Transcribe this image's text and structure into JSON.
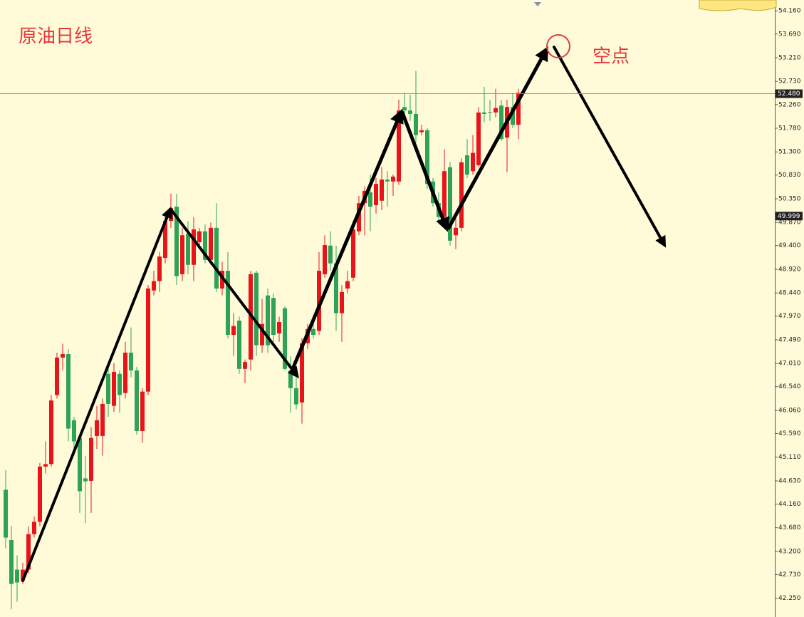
{
  "chart_data": {
    "type": "candlestick",
    "title": "原油日线",
    "annotations": [
      {
        "text": "空点"
      }
    ],
    "up_color": "#e8141a",
    "down_color": "#2ea356",
    "open": [
      44.45,
      43.43,
      42.83,
      42.61,
      42.83,
      43.55,
      43.8,
      44.92,
      44.97,
      46.37,
      47.13,
      47.2,
      45.86,
      45.5,
      44.68,
      44.63,
      45.54,
      45.54,
      46.8,
      46.15,
      46.8,
      46.41,
      47.23,
      46.87,
      45.64,
      46.44,
      48.49,
      48.68,
      49.15,
      49.9,
      50.19,
      48.82,
      49.64,
      49.01,
      49.47,
      49.69,
      49.11,
      49.76,
      48.53,
      48.89,
      47.59,
      47.88,
      46.9,
      47.09,
      48.85,
      47.38,
      48.39,
      48.34,
      47.62,
      48.13,
      46.87,
      46.51,
      46.22,
      47.42,
      47.71,
      47.67,
      48.82,
      49.4,
      49.04,
      48.03,
      48.53,
      48.75,
      49.69,
      50.26,
      50.48,
      50.22,
      50.31,
      50.74,
      50.7,
      50.7,
      52.21,
      52.14,
      52.07,
      51.7,
      51.74,
      50.7,
      50.26,
      49.98,
      50.99,
      49.61,
      49.76,
      51.23,
      50.91,
      51.03,
      52.1,
      52.11,
      52.1,
      52.24,
      51.59,
      52.21,
      51.85
    ],
    "high": [
      44.85,
      43.71,
      43.12,
      42.97,
      43.71,
      43.91,
      44.99,
      45.43,
      46.37,
      47.23,
      47.41,
      47.3,
      45.93,
      45.57,
      45.14,
      45.72,
      46.15,
      46.3,
      46.94,
      47.02,
      46.87,
      47.45,
      47.74,
      46.94,
      46.51,
      48.6,
      48.89,
      49.27,
      50.05,
      50.45,
      50.45,
      49.76,
      49.9,
      49.98,
      49.76,
      49.83,
      49.87,
      50.26,
      49.07,
      49.27,
      48.03,
      47.96,
      47.09,
      48.89,
      48.89,
      48.32,
      48.53,
      48.43,
      47.96,
      48.17,
      47.16,
      46.73,
      47.52,
      47.81,
      47.81,
      49.27,
      49.61,
      49.69,
      49.4,
      48.6,
      48.89,
      49.9,
      50.41,
      50.6,
      50.84,
      50.77,
      50.99,
      50.91,
      50.84,
      52.36,
      52.5,
      52.46,
      52.94,
      51.85,
      51.78,
      50.77,
      50.48,
      51.35,
      51.09,
      49.98,
      51.17,
      51.56,
      51.64,
      52.21,
      52.62,
      52.36,
      52.58,
      52.36,
      52.36,
      52.5,
      52.58
    ],
    "low": [
      43.26,
      42.03,
      42.18,
      42.54,
      42.76,
      43.48,
      43.71,
      44.78,
      44.92,
      46.3,
      46.87,
      45.43,
      45.14,
      43.98,
      43.77,
      43.98,
      45.28,
      45.14,
      45.93,
      46.03,
      46.01,
      46.3,
      46.73,
      45.57,
      45.4,
      46.37,
      48.39,
      48.46,
      49.04,
      49.76,
      48.6,
      48.68,
      48.82,
      48.68,
      49.33,
      49.04,
      49.01,
      48.46,
      48.39,
      47.52,
      47.16,
      46.8,
      46.61,
      46.87,
      47.16,
      47.23,
      47.23,
      47.45,
      47.45,
      46.87,
      46.01,
      46.08,
      45.79,
      47.3,
      47.52,
      47.59,
      48.75,
      48.89,
      47.67,
      47.45,
      48.43,
      48.68,
      49.61,
      49.61,
      49.69,
      50.05,
      50.12,
      50.19,
      50.41,
      50.63,
      51.93,
      51.93,
      51.49,
      51.64,
      50.55,
      50.19,
      49.9,
      49.79,
      49.4,
      49.33,
      49.69,
      50.77,
      50.84,
      50.99,
      51.9,
      51.93,
      52.0,
      51.52,
      50.89,
      51.78,
      51.56
    ],
    "close": [
      43.48,
      42.54,
      42.57,
      42.83,
      43.55,
      43.8,
      44.92,
      44.97,
      46.26,
      47.13,
      47.2,
      45.69,
      45.43,
      44.42,
      44.62,
      45.5,
      45.86,
      46.19,
      46.19,
      46.84,
      46.37,
      47.23,
      46.87,
      45.64,
      46.44,
      48.53,
      48.68,
      49.18,
      49.9,
      50.16,
      48.78,
      49.61,
      49.01,
      49.73,
      49.69,
      49.11,
      49.76,
      48.53,
      48.89,
      47.59,
      47.77,
      46.9,
      47.04,
      48.82,
      47.38,
      47.81,
      47.38,
      47.59,
      47.85,
      46.9,
      46.51,
      46.18,
      47.42,
      47.71,
      47.59,
      48.89,
      49.41,
      49.04,
      48.03,
      48.46,
      48.68,
      49.73,
      50.26,
      50.51,
      50.19,
      50.65,
      50.74,
      50.7,
      50.8,
      52.14,
      52.14,
      52.07,
      51.64,
      51.74,
      50.65,
      50.26,
      49.98,
      50.91,
      49.5,
      49.76,
      51.09,
      50.84,
      51.28,
      52.1,
      52.07,
      52.1,
      52.19,
      51.56,
      52.21,
      51.85,
      52.5
    ],
    "ylim": [
      41.87,
      54.38
    ],
    "yticks": [
      {
        "value": 54.16,
        "label": "54.160"
      },
      {
        "value": 53.69,
        "label": "53.690"
      },
      {
        "value": 53.21,
        "label": "53.210"
      },
      {
        "value": 52.73,
        "label": "52.730"
      },
      {
        "value": 52.26,
        "label": "52.260"
      },
      {
        "value": 51.78,
        "label": "51.780"
      },
      {
        "value": 51.3,
        "label": "51.300"
      },
      {
        "value": 50.83,
        "label": "50.830"
      },
      {
        "value": 50.35,
        "label": "50.350"
      },
      {
        "value": 49.87,
        "label": "49.870"
      },
      {
        "value": 49.4,
        "label": "49.400"
      },
      {
        "value": 48.92,
        "label": "48.920"
      },
      {
        "value": 48.44,
        "label": "48.440"
      },
      {
        "value": 47.97,
        "label": "47.970"
      },
      {
        "value": 47.49,
        "label": "47.490"
      },
      {
        "value": 47.01,
        "label": "47.010"
      },
      {
        "value": 46.54,
        "label": "46.540"
      },
      {
        "value": 46.06,
        "label": "46.060"
      },
      {
        "value": 45.59,
        "label": "45.590"
      },
      {
        "value": 45.11,
        "label": "45.110"
      },
      {
        "value": 44.63,
        "label": "44.630"
      },
      {
        "value": 44.16,
        "label": "44.160"
      },
      {
        "value": 43.68,
        "label": "43.680"
      },
      {
        "value": 43.2,
        "label": "43.200"
      },
      {
        "value": 42.73,
        "label": "42.730"
      },
      {
        "value": 42.25,
        "label": "42.250"
      }
    ],
    "price_line": {
      "value": 52.48,
      "label": "52.480",
      "color": "#8a8f98"
    },
    "price_marker": {
      "value": 49.999,
      "label": "49.999"
    }
  }
}
